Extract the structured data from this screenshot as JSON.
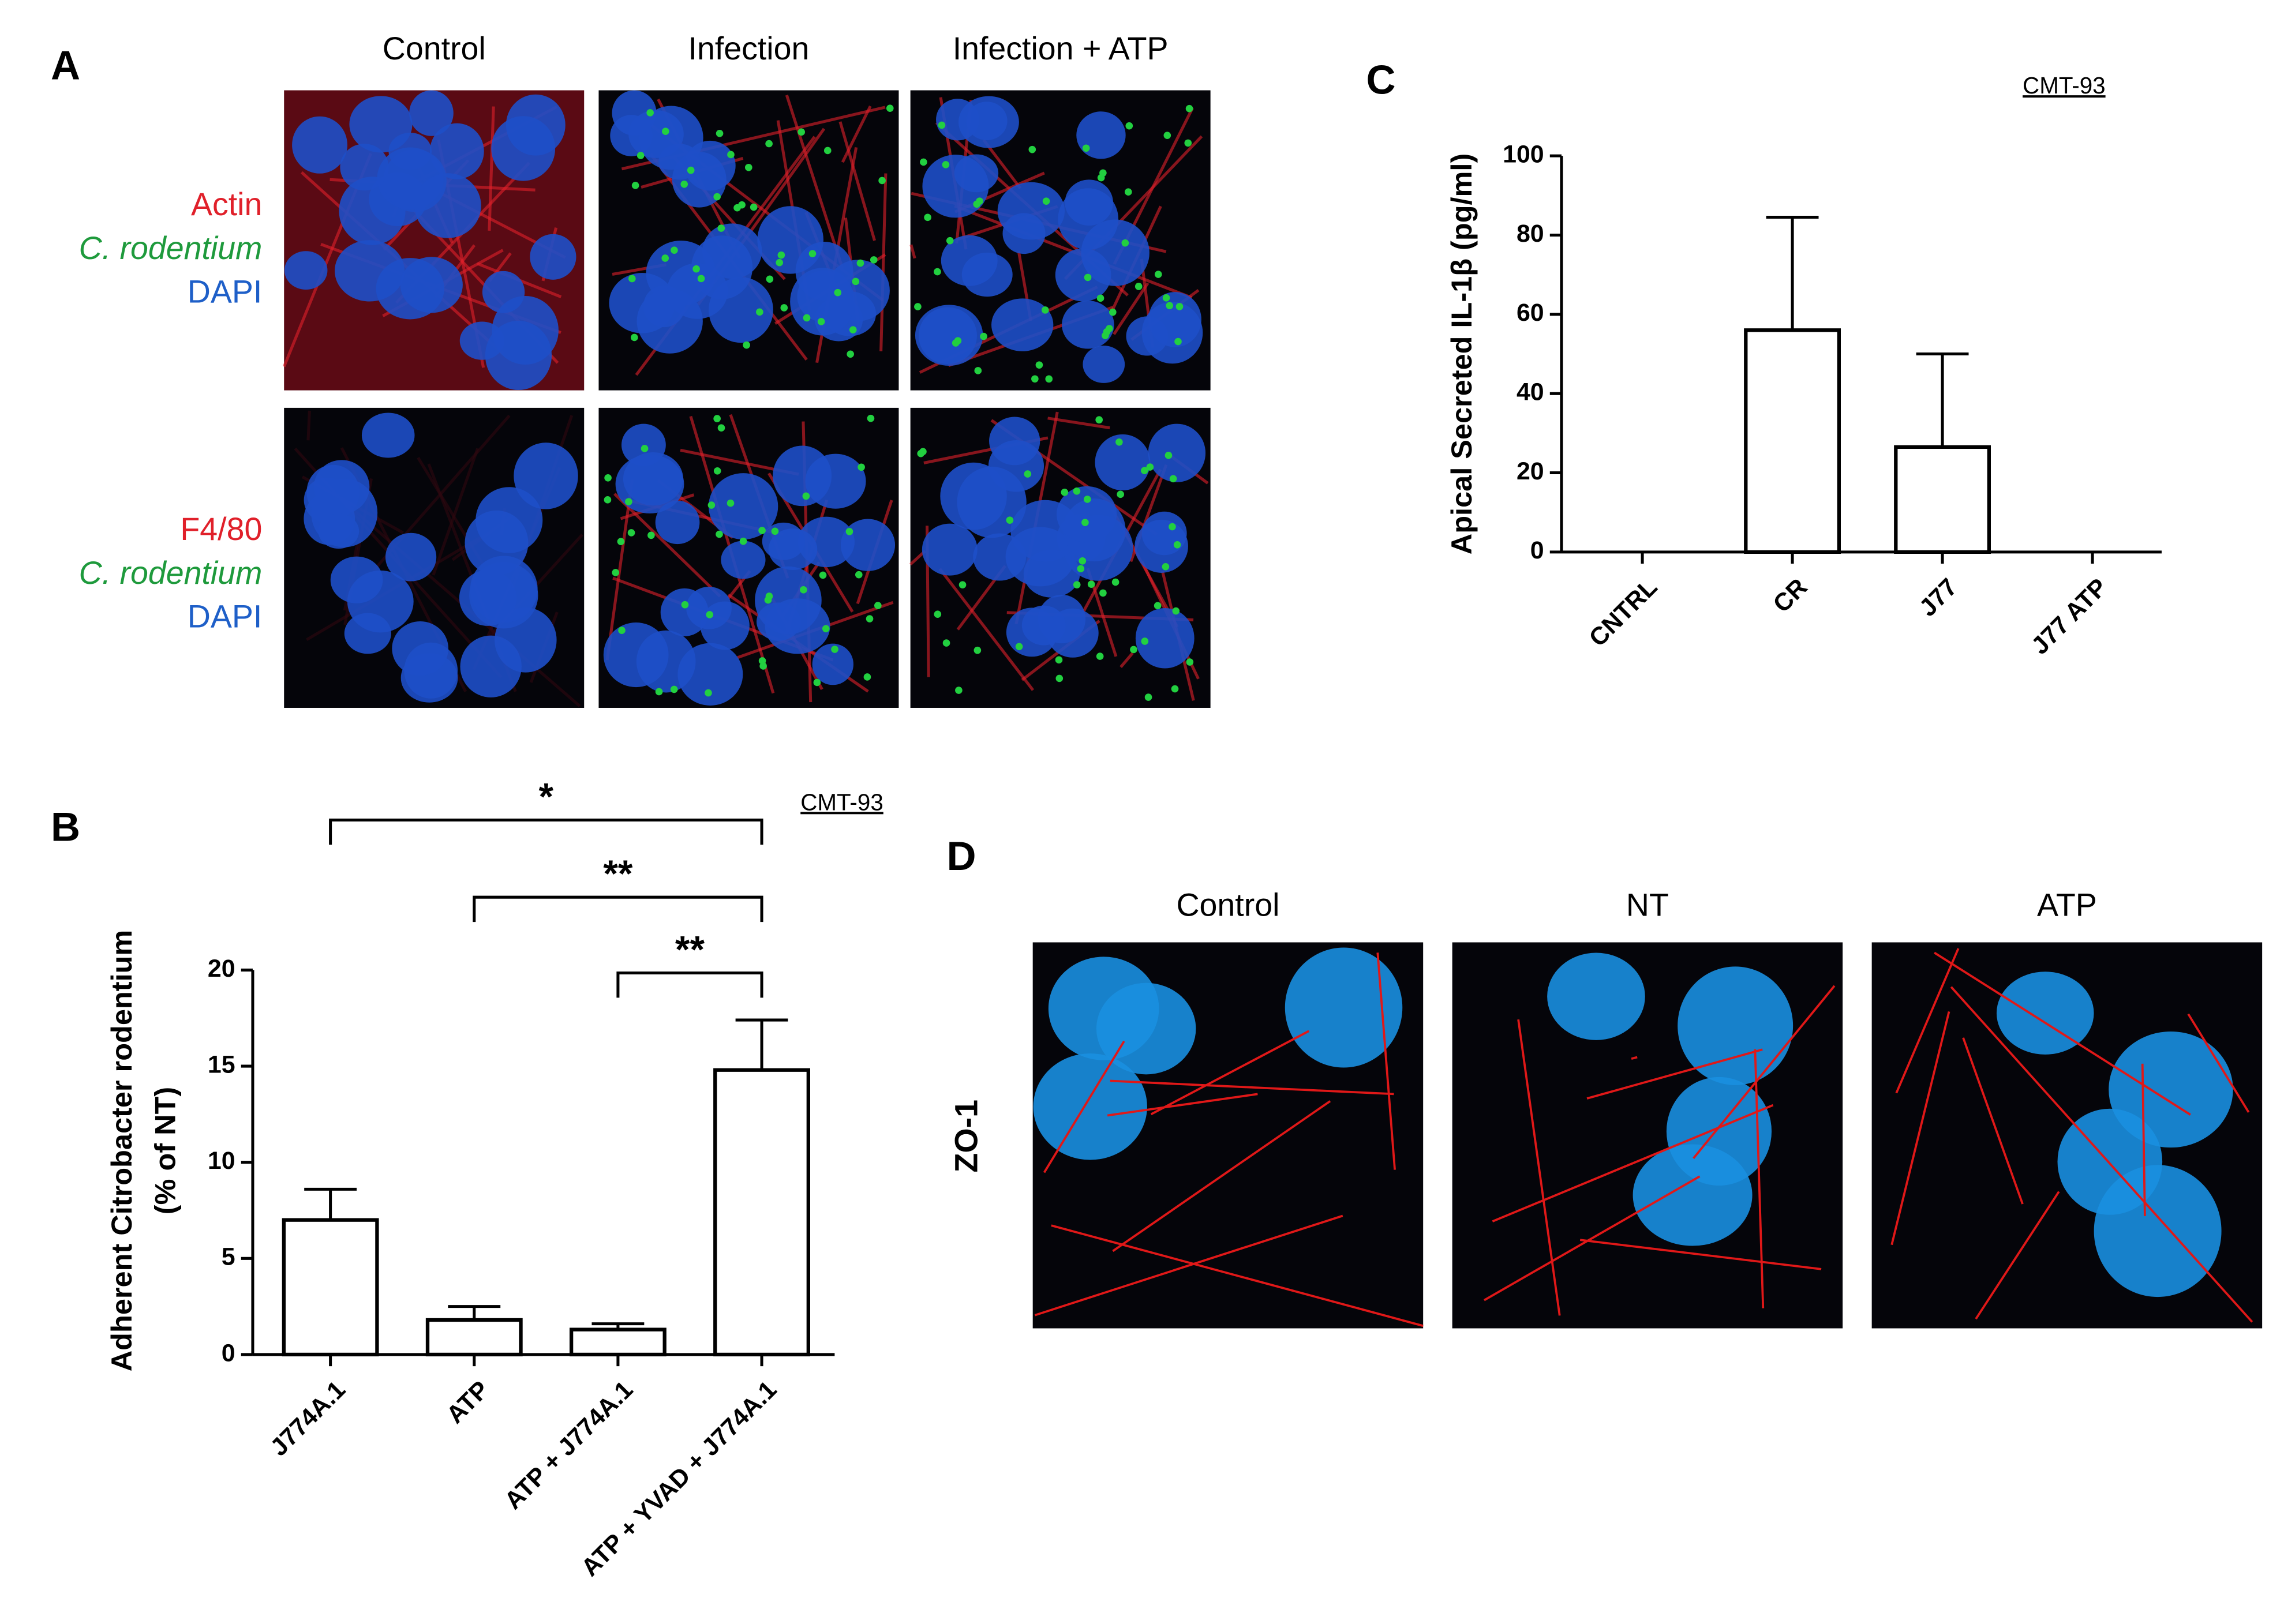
{
  "panel_labels": [
    "A",
    "B",
    "C",
    "D"
  ],
  "panel_a": {
    "columns": [
      "Control",
      "Infection",
      "Infection + ATP"
    ],
    "rows": [
      [
        "Actin",
        "C. rodentium",
        "DAPI"
      ],
      [
        "F4/80",
        "C. rodentium",
        "DAPI"
      ]
    ]
  },
  "panel_d": {
    "columns": [
      "Control",
      "NT",
      "ATP"
    ],
    "row_label": "ZO-1"
  },
  "chart_data": [
    {
      "type": "bar",
      "annotation": "CMT-93",
      "y_label": "Adherent Citrobacter rodentium",
      "y_label_2": "(% of NT)",
      "categories": [
        "J774A.1",
        "ATP",
        "ATP + J774A.1",
        "ATP + YVAD + J774A.1"
      ],
      "values": [
        7.0,
        1.8,
        1.3,
        14.8
      ],
      "errors": [
        1.6,
        0.7,
        0.3,
        2.6
      ],
      "color": "#ffffff",
      "ylim": [
        0,
        20
      ],
      "yticks": [
        0,
        5,
        10,
        15,
        20
      ],
      "comparisons": [
        {
          "groups": [
            "J774A.1",
            "ATP + YVAD + J774A.1"
          ],
          "label": "*"
        },
        {
          "groups": [
            "ATP",
            "ATP + YVAD + J774A.1"
          ],
          "label": "**"
        },
        {
          "groups": [
            "ATP + J774A.1",
            "ATP + YVAD + J774A.1"
          ],
          "label": "**"
        }
      ]
    },
    {
      "type": "bar",
      "annotation": "CMT-93",
      "y_label": "Apical Secreted IL-1β (pg/ml)",
      "categories": [
        "CNTRL",
        "CR",
        "J77",
        "J77 ATP"
      ],
      "values": [
        0,
        56,
        26.5,
        0
      ],
      "errors": [
        null,
        28.5,
        23.5,
        null
      ],
      "color": "#ffffff",
      "ylim": [
        0,
        100
      ],
      "yticks": [
        0,
        20,
        40,
        60,
        80,
        100
      ]
    }
  ]
}
